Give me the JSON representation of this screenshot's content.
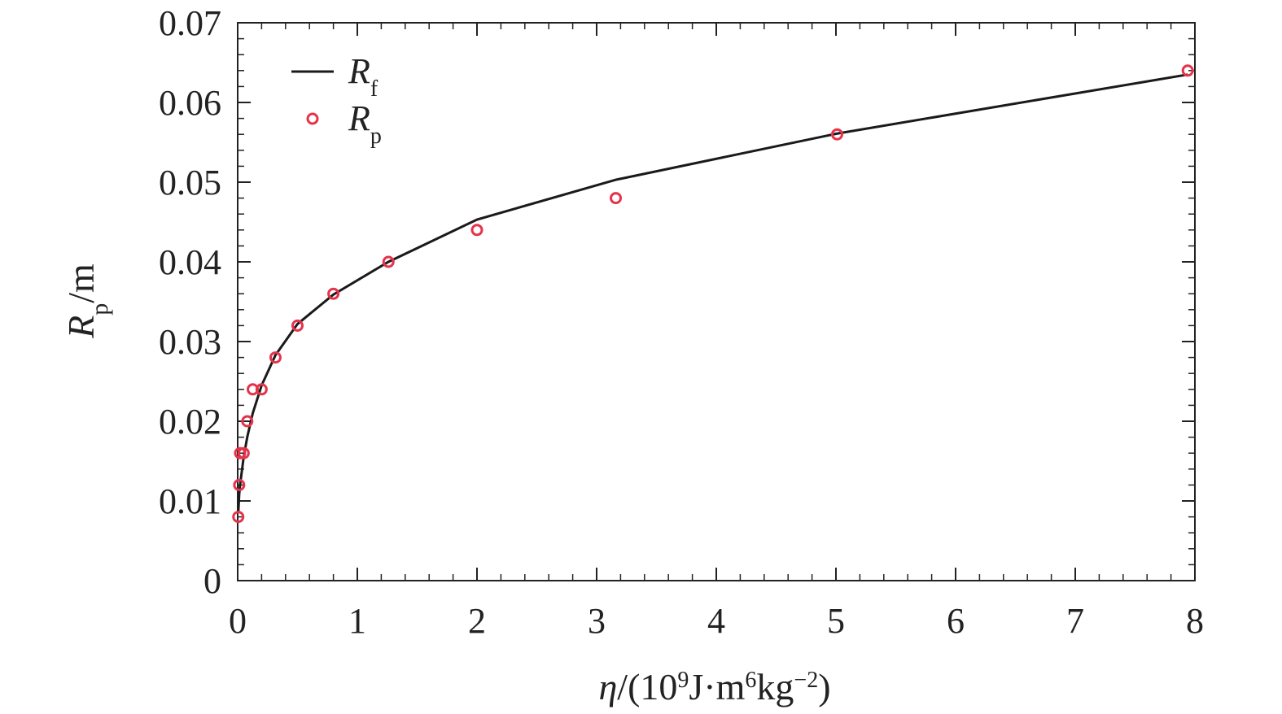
{
  "chart_data": {
    "type": "line",
    "xlabel": [
      "η",
      "/(10",
      "9",
      "J·m",
      "6",
      "kg",
      "−2",
      ")"
    ],
    "ylabel": [
      "R",
      "p",
      "/m"
    ],
    "xlim": [
      0,
      8
    ],
    "ylim": [
      0,
      0.07
    ],
    "xticks": [
      0,
      1,
      2,
      3,
      4,
      5,
      6,
      7,
      8
    ],
    "yticks": [
      0,
      0.01,
      0.02,
      0.03,
      0.04,
      0.05,
      0.06,
      0.07
    ],
    "x_minor_tick_step": 0.2,
    "y_minor_tick_step": 0.002,
    "legend": "upper left",
    "series": [
      {
        "name": "R",
        "subscript": "f",
        "type": "line",
        "color": "#1a1a1a",
        "x": [
          0.005,
          0.0126,
          0.02,
          0.05,
          0.08,
          0.126,
          0.2,
          0.316,
          0.5,
          0.8,
          1.26,
          2.0,
          3.16,
          5.01,
          7.94
        ],
        "values": [
          0.0085,
          0.0108,
          0.012,
          0.0155,
          0.018,
          0.021,
          0.0245,
          0.0283,
          0.0322,
          0.0359,
          0.04,
          0.0453,
          0.0503,
          0.0561,
          0.0635
        ]
      },
      {
        "name": "R",
        "subscript": "p",
        "type": "scatter",
        "color": "#e5334b",
        "x": [
          0.005,
          0.0126,
          0.02,
          0.05,
          0.08,
          0.126,
          0.2,
          0.316,
          0.5,
          0.8,
          1.26,
          2.0,
          3.16,
          5.01,
          7.94
        ],
        "values": [
          0.008,
          0.012,
          0.016,
          0.016,
          0.02,
          0.024,
          0.024,
          0.028,
          0.032,
          0.036,
          0.04,
          0.044,
          0.048,
          0.056,
          0.064
        ]
      }
    ]
  }
}
